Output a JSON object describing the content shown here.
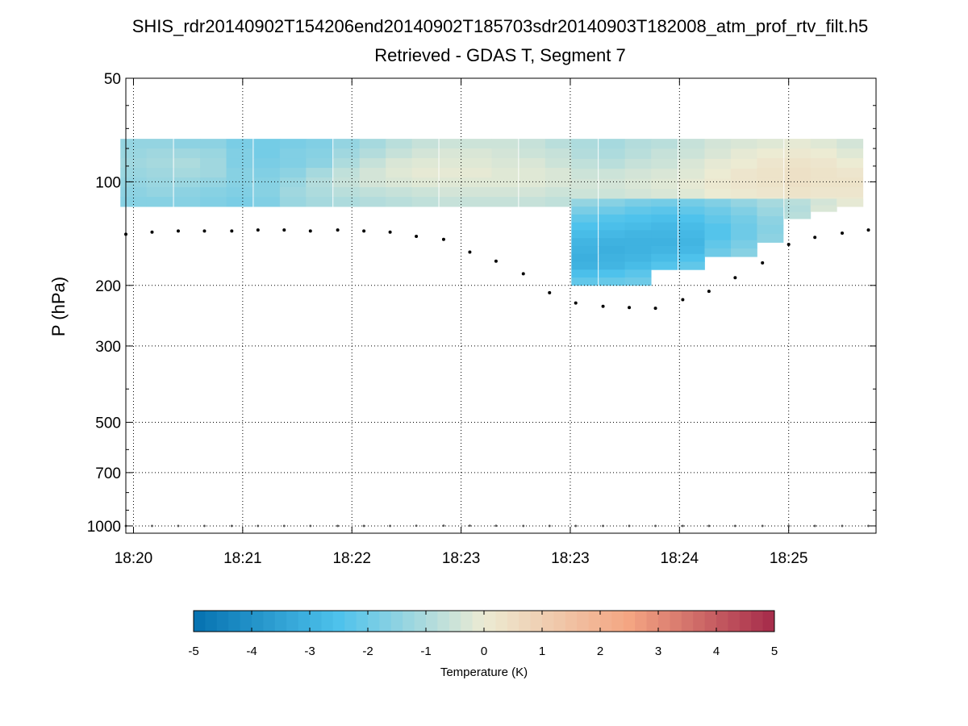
{
  "chart_data": {
    "type": "heatmap",
    "title": "SHIS_rdr20140902T154206end20140902T185703sdr20140903T182008_atm_prof_rtv_filt.h5",
    "subtitle": "Retrieved - GDAS T, Segment 7",
    "ylabel": "P (hPa)",
    "y_scale": "log",
    "y_reversed": true,
    "ylim": [
      50,
      1050
    ],
    "y_ticks": [
      50,
      100,
      200,
      300,
      500,
      700,
      1000
    ],
    "x_tick_labels": [
      "18:20",
      "18:21",
      "18:22",
      "18:23",
      "18:23",
      "18:24",
      "18:25"
    ],
    "xlim": [
      -0.07,
      6.8
    ],
    "grid": true,
    "colorbar": {
      "label": "Temperature (K)",
      "range": [
        -5,
        5
      ],
      "ticks": [
        -5,
        -4,
        -3,
        -2,
        -1,
        0,
        1,
        2,
        3,
        4,
        5
      ],
      "colormap": [
        "#0571b0",
        "#4ec2ec",
        "#ecebd3",
        "#f4a582",
        "#a52a4a"
      ]
    },
    "heatmap_columns": [
      {
        "x": 0.0,
        "top": 75,
        "bottom": 118,
        "values": [
          -1.4,
          -1.3,
          -1.2,
          -1.3,
          -1.4,
          -1.5,
          -1.6
        ]
      },
      {
        "x": 0.24,
        "top": 75,
        "bottom": 118,
        "values": [
          -1.4,
          -1.2,
          -1.1,
          -1.2,
          -1.3,
          -1.4,
          -1.6
        ]
      },
      {
        "x": 0.49,
        "top": 75,
        "bottom": 118,
        "values": [
          -1.5,
          -1.2,
          -1.0,
          -1.1,
          -1.3,
          -1.5,
          -1.6
        ]
      },
      {
        "x": 0.73,
        "top": 75,
        "bottom": 118,
        "values": [
          -1.5,
          -1.3,
          -1.2,
          -1.2,
          -1.4,
          -1.6,
          -1.7
        ]
      },
      {
        "x": 0.97,
        "top": 75,
        "bottom": 118,
        "values": [
          -1.8,
          -1.7,
          -1.7,
          -1.6,
          -1.6,
          -1.7,
          -1.8
        ]
      },
      {
        "x": 1.22,
        "top": 75,
        "bottom": 118,
        "values": [
          -1.9,
          -1.9,
          -1.8,
          -1.7,
          -1.6,
          -1.6,
          -1.7
        ]
      },
      {
        "x": 1.46,
        "top": 75,
        "bottom": 118,
        "values": [
          -1.8,
          -1.7,
          -1.7,
          -1.5,
          -1.3,
          -1.2,
          -1.3
        ]
      },
      {
        "x": 1.7,
        "top": 75,
        "bottom": 118,
        "values": [
          -1.7,
          -1.6,
          -1.5,
          -1.1,
          -0.9,
          -1.0,
          -1.1
        ]
      },
      {
        "x": 1.95,
        "top": 75,
        "bottom": 118,
        "values": [
          -1.4,
          -1.2,
          -1.0,
          -0.7,
          -0.6,
          -0.8,
          -1.0
        ]
      },
      {
        "x": 2.19,
        "top": 75,
        "bottom": 118,
        "values": [
          -1.1,
          -0.9,
          -0.6,
          -0.4,
          -0.4,
          -0.7,
          -0.9
        ]
      },
      {
        "x": 2.43,
        "top": 75,
        "bottom": 118,
        "values": [
          -0.8,
          -0.6,
          -0.3,
          -0.2,
          -0.3,
          -0.6,
          -0.8
        ]
      },
      {
        "x": 2.67,
        "top": 75,
        "bottom": 118,
        "values": [
          -0.6,
          -0.4,
          -0.2,
          -0.1,
          -0.2,
          -0.5,
          -0.7
        ]
      },
      {
        "x": 2.92,
        "top": 75,
        "bottom": 118,
        "values": [
          -0.5,
          -0.3,
          -0.2,
          -0.1,
          -0.2,
          -0.4,
          -0.6
        ]
      },
      {
        "x": 3.16,
        "top": 75,
        "bottom": 118,
        "values": [
          -0.5,
          -0.3,
          -0.2,
          -0.1,
          -0.2,
          -0.4,
          -0.6
        ]
      },
      {
        "x": 3.4,
        "top": 75,
        "bottom": 118,
        "values": [
          -0.5,
          -0.4,
          -0.3,
          -0.2,
          -0.2,
          -0.4,
          -0.6
        ]
      },
      {
        "x": 3.65,
        "top": 75,
        "bottom": 118,
        "values": [
          -0.6,
          -0.5,
          -0.3,
          -0.2,
          -0.2,
          -0.4,
          -0.6
        ]
      },
      {
        "x": 3.89,
        "top": 75,
        "bottom": 118,
        "values": [
          -0.8,
          -0.6,
          -0.5,
          -0.3,
          -0.3,
          -0.5,
          -0.7
        ]
      },
      {
        "x": 4.13,
        "top": 75,
        "bottom": 112,
        "values": [
          -1.0,
          -0.9,
          -0.7,
          -0.5,
          -0.4,
          -0.5
        ]
      },
      {
        "x": 4.38,
        "top": 75,
        "bottom": 112,
        "values": [
          -1.1,
          -1.0,
          -0.8,
          -0.5,
          -0.4,
          -0.5
        ]
      },
      {
        "x": 4.62,
        "top": 75,
        "bottom": 112,
        "values": [
          -0.9,
          -0.8,
          -0.6,
          -0.4,
          -0.3,
          -0.4
        ]
      },
      {
        "x": 4.86,
        "top": 75,
        "bottom": 112,
        "values": [
          -0.8,
          -0.6,
          -0.5,
          -0.3,
          -0.2,
          -0.3
        ]
      },
      {
        "x": 5.11,
        "top": 75,
        "bottom": 112,
        "values": [
          -0.6,
          -0.5,
          -0.3,
          -0.2,
          -0.1,
          -0.2
        ]
      },
      {
        "x": 5.35,
        "top": 75,
        "bottom": 112,
        "values": [
          -0.4,
          -0.3,
          -0.1,
          0.0,
          0.1,
          0.0
        ]
      },
      {
        "x": 5.59,
        "top": 75,
        "bottom": 112,
        "values": [
          -0.3,
          -0.1,
          0.0,
          0.2,
          0.2,
          0.1
        ]
      },
      {
        "x": 5.83,
        "top": 75,
        "bottom": 118,
        "values": [
          -0.2,
          0.0,
          0.2,
          0.3,
          0.3,
          0.2,
          0.1
        ]
      },
      {
        "x": 6.08,
        "top": 75,
        "bottom": 118,
        "values": [
          -0.1,
          0.1,
          0.3,
          0.4,
          0.4,
          0.3,
          0.2
        ]
      },
      {
        "x": 6.32,
        "top": 75,
        "bottom": 118,
        "values": [
          -0.2,
          0.0,
          0.2,
          0.3,
          0.3,
          0.2,
          0.1
        ]
      },
      {
        "x": 6.56,
        "top": 75,
        "bottom": 118,
        "values": [
          -0.4,
          -0.2,
          0.0,
          0.2,
          0.3,
          0.2,
          0.1
        ]
      },
      {
        "x": 4.13,
        "top": 112,
        "bottom": 200,
        "values": [
          -1.4,
          -1.8,
          -2.2,
          -2.5,
          -2.7,
          -2.9,
          -3.0,
          -3.1,
          -3.0,
          -2.6,
          -2.2
        ]
      },
      {
        "x": 4.38,
        "top": 112,
        "bottom": 200,
        "values": [
          -1.6,
          -2.0,
          -2.4,
          -2.6,
          -2.8,
          -3.0,
          -3.1,
          -3.0,
          -2.9,
          -2.5,
          -2.1
        ]
      },
      {
        "x": 4.62,
        "top": 112,
        "bottom": 200,
        "values": [
          -1.8,
          -2.2,
          -2.5,
          -2.7,
          -2.9,
          -3.0,
          -3.0,
          -2.9,
          -2.7,
          -2.3,
          -2.0
        ]
      },
      {
        "x": 4.86,
        "top": 112,
        "bottom": 180,
        "values": [
          -1.9,
          -2.3,
          -2.6,
          -2.8,
          -2.9,
          -3.0,
          -2.9,
          -2.7,
          -2.4
        ]
      },
      {
        "x": 5.11,
        "top": 112,
        "bottom": 180,
        "values": [
          -1.9,
          -2.2,
          -2.5,
          -2.7,
          -2.8,
          -2.9,
          -2.8,
          -2.5,
          -2.2
        ]
      },
      {
        "x": 5.35,
        "top": 112,
        "bottom": 165,
        "values": [
          -1.7,
          -2.0,
          -2.2,
          -2.4,
          -2.4,
          -2.2,
          -2.0
        ]
      },
      {
        "x": 5.59,
        "top": 112,
        "bottom": 165,
        "values": [
          -1.4,
          -1.7,
          -1.9,
          -2.0,
          -2.0,
          -1.8,
          -1.6
        ]
      },
      {
        "x": 5.83,
        "top": 112,
        "bottom": 150,
        "values": [
          -1.1,
          -1.3,
          -1.5,
          -1.6,
          -1.5
        ]
      },
      {
        "x": 6.08,
        "top": 112,
        "bottom": 128,
        "values": [
          -0.8,
          -0.9,
          -0.8
        ]
      },
      {
        "x": 6.32,
        "top": 112,
        "bottom": 122,
        "values": [
          -0.4,
          -0.3
        ]
      },
      {
        "x": 6.56,
        "top": 112,
        "bottom": 118,
        "values": [
          -0.1
        ]
      }
    ],
    "column_width": 0.24,
    "upper_dots": {
      "x": [
        -0.07,
        0.17,
        0.41,
        0.65,
        0.9,
        1.14,
        1.38,
        1.62,
        1.87,
        2.11,
        2.35,
        2.59,
        2.84,
        3.08,
        3.32,
        3.57,
        3.81,
        4.05,
        4.3,
        4.54,
        4.78,
        5.03,
        5.27,
        5.51,
        5.76,
        6.0,
        6.24,
        6.49,
        6.73
      ],
      "y": [
        142,
        140,
        139,
        139,
        139,
        138,
        138,
        139,
        138,
        139,
        140,
        144,
        147,
        160,
        170,
        185,
        210,
        225,
        230,
        232,
        233,
        220,
        208,
        190,
        172,
        152,
        145,
        141,
        138
      ]
    },
    "lower_dots": {
      "x": [
        -0.07,
        0.17,
        0.41,
        0.65,
        0.9,
        1.14,
        1.38,
        1.62,
        1.87,
        2.11,
        2.35,
        2.59,
        2.84,
        3.08,
        3.32,
        3.57,
        3.81,
        4.05,
        4.3,
        4.54,
        4.78,
        5.03,
        5.27,
        5.51,
        5.76,
        6.0,
        6.24,
        6.49,
        6.73
      ],
      "y": [
        1000,
        1000,
        1000,
        1000,
        1000,
        1000,
        1000,
        1000,
        1000,
        1000,
        1000,
        999,
        998,
        998,
        999,
        1000,
        1000,
        1000,
        1000,
        1000,
        1000,
        1000,
        1000,
        1000,
        1000,
        1000,
        1000,
        1000,
        1000
      ]
    }
  }
}
